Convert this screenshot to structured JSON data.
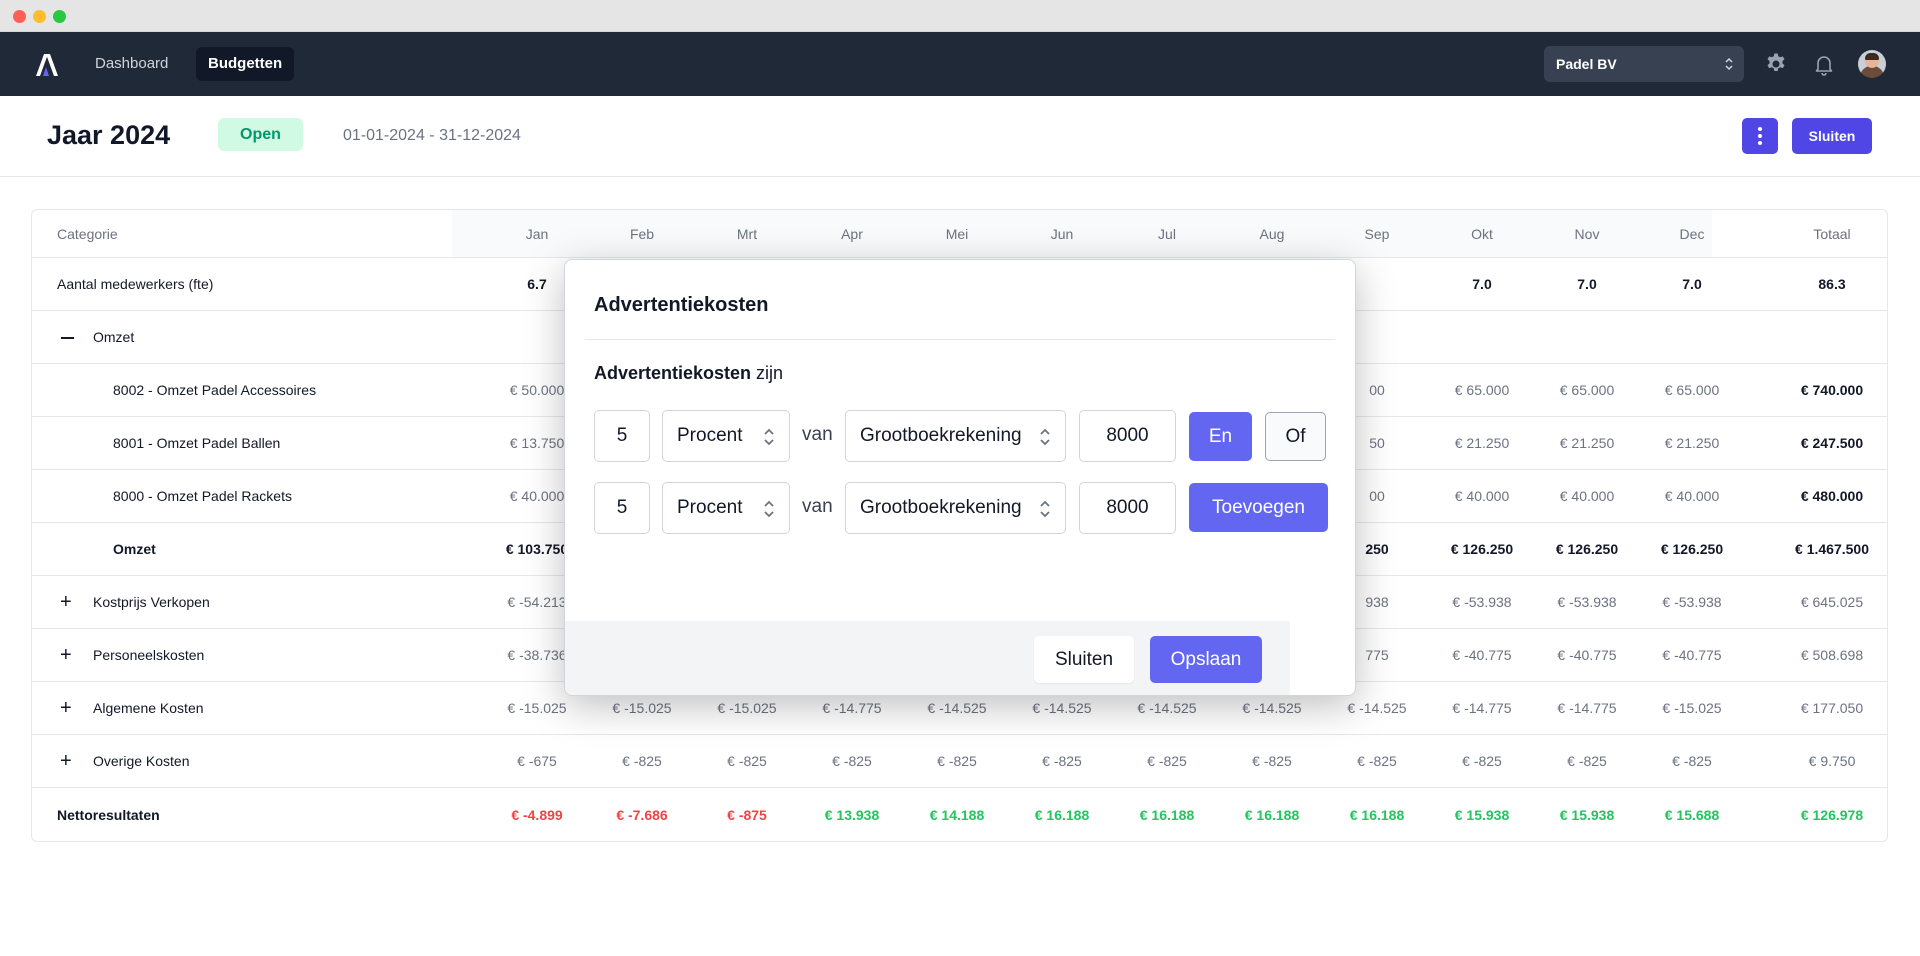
{
  "nav": {
    "items": [
      {
        "label": "Dashboard",
        "active": false
      },
      {
        "label": "Budgetten",
        "active": true
      }
    ],
    "company": "Padel BV"
  },
  "header": {
    "title": "Jaar 2024",
    "status": "Open",
    "date_range": "01-01-2024 - 31-12-2024",
    "close_label": "Sluiten"
  },
  "table": {
    "columns": [
      "Categorie",
      "Jan",
      "Feb",
      "Mrt",
      "Apr",
      "Mei",
      "Jun",
      "Jul",
      "Aug",
      "Sep",
      "Okt",
      "Nov",
      "Dec",
      "Totaal"
    ],
    "rows": [
      {
        "label": "Aantal medewerkers (fte)",
        "kind": "plain",
        "style": "bold",
        "cells": [
          "6.7",
          "",
          "",
          "",
          "",
          "",
          "",
          "",
          "",
          "7.0",
          "7.0",
          "7.0",
          "86.3"
        ]
      },
      {
        "label": "Omzet",
        "kind": "collapse",
        "style": "muted",
        "cells": [
          "",
          "",
          "",
          "",
          "",
          "",
          "",
          "",
          "",
          "",
          "",
          "",
          ""
        ]
      },
      {
        "label": "8002 - Omzet Padel Accessoires",
        "kind": "child",
        "style": "muted",
        "cells": [
          "€ 50.000",
          "",
          "",
          "",
          "",
          "",
          "",
          "",
          "00",
          "€ 65.000",
          "€ 65.000",
          "€ 65.000",
          "€ 740.000"
        ]
      },
      {
        "label": "8001 - Omzet Padel Ballen",
        "kind": "child",
        "style": "muted",
        "cells": [
          "€ 13.750",
          "",
          "",
          "",
          "",
          "",
          "",
          "",
          "50",
          "€ 21.250",
          "€ 21.250",
          "€ 21.250",
          "€ 247.500"
        ]
      },
      {
        "label": "8000 - Omzet Padel Rackets",
        "kind": "child",
        "style": "muted",
        "cells": [
          "€ 40.000",
          "",
          "",
          "",
          "",
          "",
          "",
          "",
          "00",
          "€ 40.000",
          "€ 40.000",
          "€ 40.000",
          "€ 480.000"
        ]
      },
      {
        "label": "Omzet",
        "kind": "subtotal",
        "style": "bold",
        "cells": [
          "€ 103.750",
          "",
          "",
          "",
          "",
          "",
          "",
          "",
          "250",
          "€ 126.250",
          "€ 126.250",
          "€ 126.250",
          "€ 1.467.500"
        ]
      },
      {
        "label": "Kostprijs Verkopen",
        "kind": "expand",
        "style": "muted",
        "cells": [
          "€ -54.213",
          "",
          "",
          "",
          "",
          "",
          "",
          "",
          "938",
          "€ -53.938",
          "€ -53.938",
          "€ -53.938",
          "€ 645.025"
        ]
      },
      {
        "label": "Personeelskosten",
        "kind": "expand",
        "style": "muted",
        "cells": [
          "€ -38.736",
          "",
          "",
          "",
          "",
          "",
          "",
          "",
          "775",
          "€ -40.775",
          "€ -40.775",
          "€ -40.775",
          "€ 508.698"
        ]
      },
      {
        "label": "Algemene Kosten",
        "kind": "expand",
        "style": "muted",
        "cells": [
          "€ -15.025",
          "€ -15.025",
          "€ -15.025",
          "€ -14.775",
          "€ -14.525",
          "€ -14.525",
          "€ -14.525",
          "€ -14.525",
          "€ -14.525",
          "€ -14.775",
          "€ -14.775",
          "€ -15.025",
          "€ 177.050"
        ]
      },
      {
        "label": "Overige Kosten",
        "kind": "expand",
        "style": "muted",
        "cells": [
          "€ -675",
          "€ -825",
          "€ -825",
          "€ -825",
          "€ -825",
          "€ -825",
          "€ -825",
          "€ -825",
          "€ -825",
          "€ -825",
          "€ -825",
          "€ -825",
          "€ 9.750"
        ]
      },
      {
        "label": "Nettoresultaten",
        "kind": "result",
        "style": "bold",
        "cells": [
          "€ -4.899",
          "€ -7.686",
          "€ -875",
          "€ 13.938",
          "€ 14.188",
          "€ 16.188",
          "€ 16.188",
          "€ 16.188",
          "€ 16.188",
          "€ 15.938",
          "€ 15.938",
          "€ 15.688",
          "€ 126.978"
        ],
        "tones": [
          "red",
          "red",
          "red",
          "green",
          "green",
          "green",
          "green",
          "green",
          "green",
          "green",
          "green",
          "green",
          "green"
        ]
      }
    ]
  },
  "modal": {
    "title": "Advertentiekosten",
    "subtitle_bold": "Advertentiekosten",
    "subtitle_rest": " zijn",
    "rules": [
      {
        "amount": "5",
        "unit": "Procent",
        "connector": "van",
        "source": "Grootboekrekening",
        "account": "8000"
      },
      {
        "amount": "5",
        "unit": "Procent",
        "connector": "van",
        "source": "Grootboekrekening",
        "account": "8000"
      }
    ],
    "and_label": "En",
    "or_label": "Of",
    "add_label": "Toevoegen",
    "cancel_label": "Sluiten",
    "save_label": "Opslaan"
  },
  "colors": {
    "nav_bg": "#1f2937",
    "accent": "#6366f1",
    "status_bg": "#d1fae5",
    "status_text": "#059669",
    "negative": "#ef4444",
    "positive": "#22c55e"
  },
  "icons": [
    "app-logo-icon",
    "chevron-updown-icon",
    "gear-icon",
    "bell-icon",
    "kebab-icon",
    "plus-icon",
    "minus-icon"
  ]
}
